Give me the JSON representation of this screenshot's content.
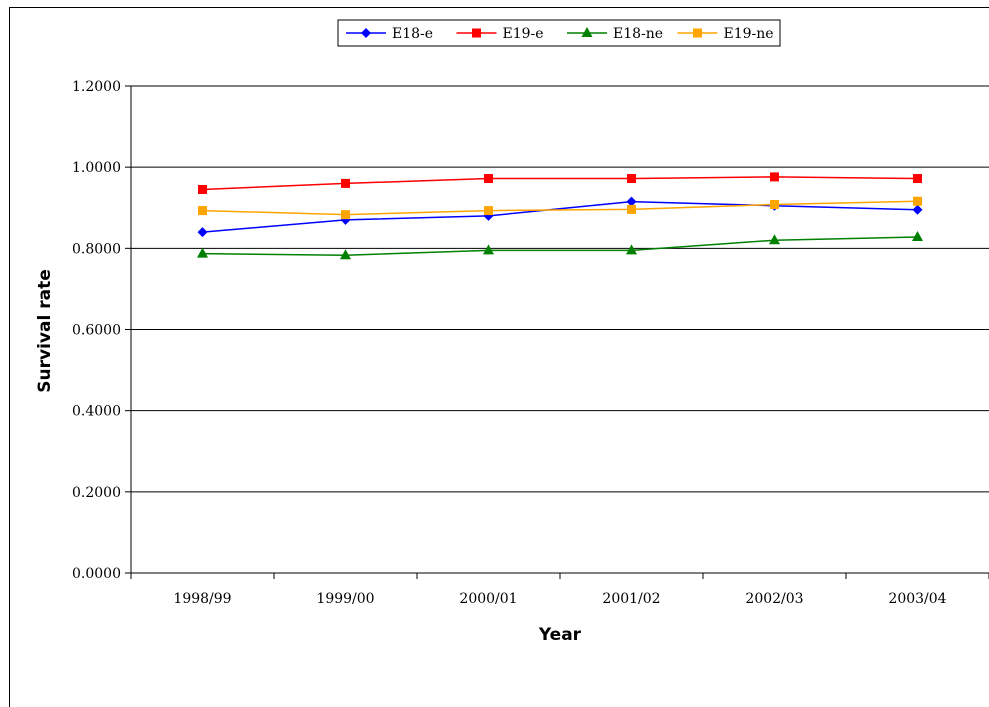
{
  "chart_data": {
    "type": "line",
    "title": "",
    "xlabel": "Year",
    "ylabel": "Survival rate",
    "categories": [
      "1998/99",
      "1999/00",
      "2000/01",
      "2001/02",
      "2002/03",
      "2003/04"
    ],
    "ylim": [
      0,
      1.2
    ],
    "yticks": [
      0,
      0.2,
      0.4,
      0.6,
      0.8,
      1.0,
      1.2
    ],
    "ytick_labels": [
      "0.0000",
      "0.2000",
      "0.4000",
      "0.6000",
      "0.8000",
      "1.0000",
      "1.2000"
    ],
    "grid": true,
    "legend_position": "top-center",
    "series": [
      {
        "name": "E18-e",
        "color": "#0000ff",
        "marker": "diamond",
        "values": [
          0.84,
          0.87,
          0.88,
          0.915,
          0.905,
          0.895
        ]
      },
      {
        "name": "E19-e",
        "color": "#ff0000",
        "marker": "square",
        "values": [
          0.945,
          0.96,
          0.972,
          0.972,
          0.976,
          0.972
        ]
      },
      {
        "name": "E18-ne",
        "color": "#008000",
        "marker": "triangle",
        "values": [
          0.787,
          0.783,
          0.795,
          0.795,
          0.82,
          0.828
        ]
      },
      {
        "name": "E19-ne",
        "color": "#ffa500",
        "marker": "square",
        "values": [
          0.893,
          0.883,
          0.893,
          0.896,
          0.908,
          0.916
        ]
      }
    ]
  }
}
